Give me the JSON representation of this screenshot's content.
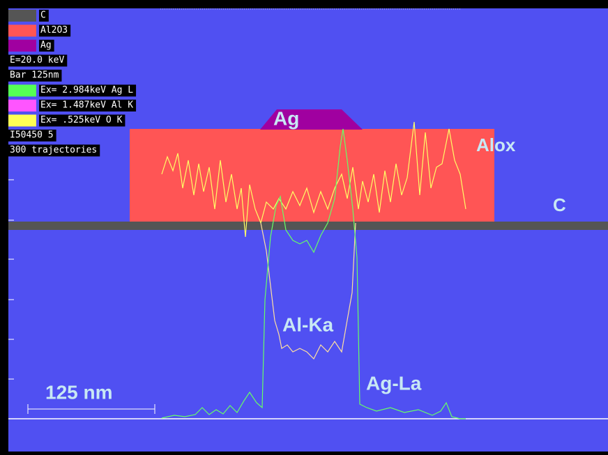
{
  "legend": {
    "materials": [
      "C",
      "Al2O3",
      "Ag"
    ],
    "info": [
      "E=20.0 keV",
      " Bar  125nm"
    ],
    "lines": [
      "Ex= 2.984keV Ag L",
      "Ex= 1.487keV Al K",
      "Ex=  .525keV O  K"
    ],
    "footer": [
      "I50450  5",
      " 300 trajectories"
    ]
  },
  "labels": {
    "ag": "Ag",
    "alox": "Alox",
    "c": "C",
    "al_ka": "Al-Ka",
    "ag_la": "Ag-La",
    "scale": "125 nm"
  }
}
